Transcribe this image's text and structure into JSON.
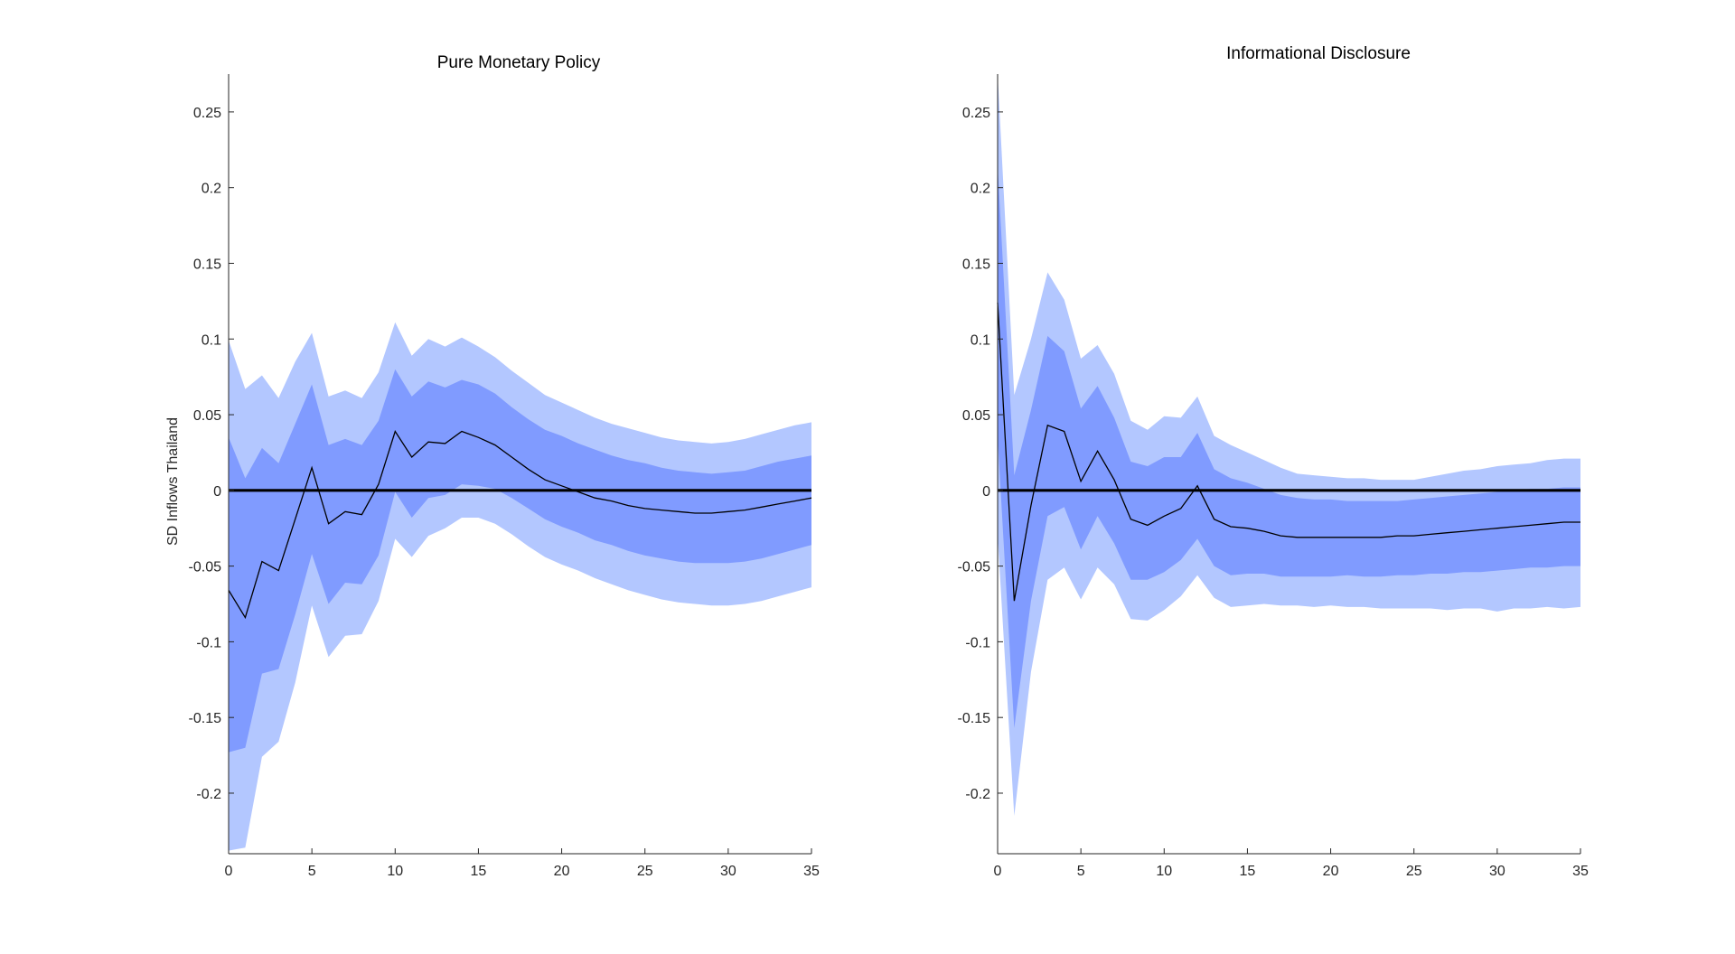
{
  "colors": {
    "outer_band": "#b3c7ff",
    "inner_band": "#809bff",
    "median_line": "#000000",
    "zero_line": "#000000",
    "axis": "#262626"
  },
  "chart_data": [
    {
      "type": "area",
      "title": "Pure Monetary Policy",
      "xlabel": "",
      "ylabel": "SD Inflows Thailand",
      "xlim": [
        0,
        35
      ],
      "ylim": [
        -0.24,
        0.275
      ],
      "xticks": [
        0,
        5,
        10,
        15,
        20,
        25,
        30,
        35
      ],
      "xtick_labels": [
        "0",
        "5",
        "10",
        "15",
        "20",
        "25",
        "30",
        "35"
      ],
      "yticks": [
        -0.2,
        -0.15,
        -0.1,
        -0.05,
        0,
        0.05,
        0.1,
        0.15,
        0.2,
        0.25
      ],
      "ytick_labels": [
        "-0.2",
        "-0.15",
        "-0.1",
        "-0.05",
        "0",
        "0.05",
        "0.1",
        "0.15",
        "0.2",
        "0.25"
      ],
      "x": [
        0,
        1,
        2,
        3,
        4,
        5,
        6,
        7,
        8,
        9,
        10,
        11,
        12,
        13,
        14,
        15,
        16,
        17,
        18,
        19,
        20,
        21,
        22,
        23,
        24,
        25,
        26,
        27,
        28,
        29,
        30,
        31,
        32,
        33,
        34,
        35
      ],
      "series": [
        {
          "name": "median",
          "values": [
            -0.066,
            -0.084,
            -0.047,
            -0.053,
            -0.019,
            0.015,
            -0.022,
            -0.014,
            -0.016,
            0.004,
            0.039,
            0.022,
            0.032,
            0.031,
            0.039,
            0.035,
            0.03,
            0.022,
            0.014,
            0.007,
            0.003,
            -0.001,
            -0.005,
            -0.007,
            -0.01,
            -0.012,
            -0.013,
            -0.014,
            -0.015,
            -0.015,
            -0.014,
            -0.013,
            -0.011,
            -0.009,
            -0.007,
            -0.005
          ]
        },
        {
          "name": "inner_upper",
          "values": [
            0.035,
            0.008,
            0.028,
            0.018,
            0.044,
            0.07,
            0.03,
            0.034,
            0.03,
            0.046,
            0.08,
            0.062,
            0.072,
            0.068,
            0.073,
            0.07,
            0.064,
            0.055,
            0.047,
            0.04,
            0.036,
            0.031,
            0.027,
            0.023,
            0.02,
            0.018,
            0.015,
            0.013,
            0.012,
            0.011,
            0.012,
            0.013,
            0.016,
            0.019,
            0.021,
            0.023
          ]
        },
        {
          "name": "inner_lower",
          "values": [
            -0.173,
            -0.17,
            -0.121,
            -0.118,
            -0.082,
            -0.042,
            -0.075,
            -0.061,
            -0.062,
            -0.043,
            -0.001,
            -0.018,
            -0.005,
            -0.003,
            0.004,
            0.003,
            0.001,
            -0.005,
            -0.012,
            -0.019,
            -0.024,
            -0.028,
            -0.033,
            -0.036,
            -0.04,
            -0.043,
            -0.045,
            -0.047,
            -0.048,
            -0.048,
            -0.048,
            -0.047,
            -0.045,
            -0.042,
            -0.039,
            -0.036
          ]
        },
        {
          "name": "outer_upper",
          "values": [
            0.099,
            0.067,
            0.076,
            0.061,
            0.085,
            0.104,
            0.062,
            0.066,
            0.061,
            0.078,
            0.111,
            0.089,
            0.1,
            0.095,
            0.101,
            0.095,
            0.088,
            0.079,
            0.071,
            0.063,
            0.058,
            0.053,
            0.048,
            0.044,
            0.041,
            0.038,
            0.035,
            0.033,
            0.032,
            0.031,
            0.032,
            0.034,
            0.037,
            0.04,
            0.043,
            0.045
          ]
        },
        {
          "name": "outer_lower",
          "values": [
            -0.238,
            -0.236,
            -0.176,
            -0.166,
            -0.127,
            -0.076,
            -0.11,
            -0.096,
            -0.095,
            -0.073,
            -0.032,
            -0.044,
            -0.03,
            -0.025,
            -0.018,
            -0.018,
            -0.022,
            -0.029,
            -0.037,
            -0.044,
            -0.049,
            -0.053,
            -0.058,
            -0.062,
            -0.066,
            -0.069,
            -0.072,
            -0.074,
            -0.075,
            -0.076,
            -0.076,
            -0.075,
            -0.073,
            -0.07,
            -0.067,
            -0.064
          ]
        }
      ]
    },
    {
      "type": "area",
      "title": "Informational Disclosure",
      "xlabel": "",
      "ylabel": "",
      "xlim": [
        0,
        35
      ],
      "ylim": [
        -0.24,
        0.275
      ],
      "xticks": [
        0,
        5,
        10,
        15,
        20,
        25,
        30,
        35
      ],
      "xtick_labels": [
        "0",
        "5",
        "10",
        "15",
        "20",
        "25",
        "30",
        "35"
      ],
      "yticks": [
        -0.2,
        -0.15,
        -0.1,
        -0.05,
        0,
        0.05,
        0.1,
        0.15,
        0.2,
        0.25
      ],
      "ytick_labels": [
        "-0.2",
        "-0.15",
        "-0.1",
        "-0.05",
        "0",
        "0.05",
        "0.1",
        "0.15",
        "0.2",
        "0.25"
      ],
      "x": [
        0,
        1,
        2,
        3,
        4,
        5,
        6,
        7,
        8,
        9,
        10,
        11,
        12,
        13,
        14,
        15,
        16,
        17,
        18,
        19,
        20,
        21,
        22,
        23,
        24,
        25,
        26,
        27,
        28,
        29,
        30,
        31,
        32,
        33,
        34,
        35
      ],
      "series": [
        {
          "name": "median",
          "values": [
            0.124,
            -0.073,
            -0.01,
            0.043,
            0.039,
            0.006,
            0.026,
            0.007,
            -0.019,
            -0.023,
            -0.017,
            -0.012,
            0.003,
            -0.019,
            -0.024,
            -0.025,
            -0.027,
            -0.03,
            -0.031,
            -0.031,
            -0.031,
            -0.031,
            -0.031,
            -0.031,
            -0.03,
            -0.03,
            -0.029,
            -0.028,
            -0.027,
            -0.026,
            -0.025,
            -0.024,
            -0.023,
            -0.022,
            -0.021,
            -0.021
          ]
        },
        {
          "name": "inner_upper",
          "values": [
            0.215,
            0.01,
            0.053,
            0.102,
            0.092,
            0.054,
            0.069,
            0.048,
            0.019,
            0.016,
            0.022,
            0.022,
            0.038,
            0.014,
            0.008,
            0.005,
            0.001,
            -0.003,
            -0.005,
            -0.006,
            -0.006,
            -0.007,
            -0.007,
            -0.007,
            -0.007,
            -0.006,
            -0.005,
            -0.004,
            -0.003,
            -0.002,
            -0.001,
            0.0,
            0.001,
            0.001,
            0.002,
            0.002
          ]
        },
        {
          "name": "inner_lower",
          "values": [
            0.035,
            -0.157,
            -0.073,
            -0.017,
            -0.011,
            -0.039,
            -0.017,
            -0.035,
            -0.059,
            -0.059,
            -0.054,
            -0.046,
            -0.032,
            -0.05,
            -0.056,
            -0.055,
            -0.055,
            -0.057,
            -0.057,
            -0.057,
            -0.057,
            -0.056,
            -0.057,
            -0.057,
            -0.056,
            -0.056,
            -0.055,
            -0.055,
            -0.054,
            -0.054,
            -0.053,
            -0.052,
            -0.051,
            -0.051,
            -0.05,
            -0.05
          ]
        },
        {
          "name": "outer_upper",
          "values": [
            0.275,
            0.063,
            0.1,
            0.144,
            0.126,
            0.087,
            0.096,
            0.077,
            0.046,
            0.04,
            0.049,
            0.048,
            0.062,
            0.036,
            0.03,
            0.025,
            0.02,
            0.015,
            0.011,
            0.01,
            0.009,
            0.008,
            0.008,
            0.007,
            0.007,
            0.007,
            0.009,
            0.011,
            0.013,
            0.014,
            0.016,
            0.017,
            0.018,
            0.02,
            0.021,
            0.021
          ]
        },
        {
          "name": "outer_lower",
          "values": [
            -0.03,
            -0.215,
            -0.12,
            -0.059,
            -0.051,
            -0.072,
            -0.051,
            -0.062,
            -0.085,
            -0.086,
            -0.079,
            -0.07,
            -0.056,
            -0.071,
            -0.077,
            -0.076,
            -0.075,
            -0.076,
            -0.076,
            -0.077,
            -0.076,
            -0.077,
            -0.077,
            -0.078,
            -0.078,
            -0.078,
            -0.078,
            -0.079,
            -0.078,
            -0.078,
            -0.08,
            -0.078,
            -0.078,
            -0.077,
            -0.078,
            -0.077
          ]
        }
      ]
    }
  ]
}
